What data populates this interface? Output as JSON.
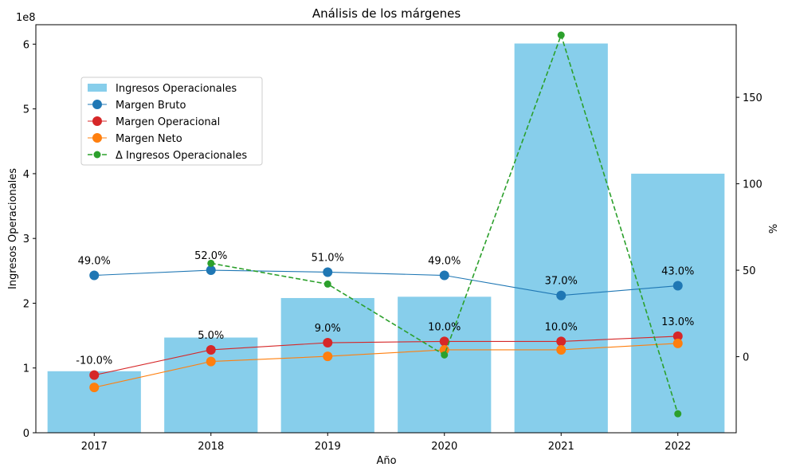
{
  "chart_data": {
    "type": "bar",
    "title": "Análisis de los márgenes",
    "xlabel": "Año",
    "ylabel": "Ingresos Operacionales",
    "ylabel_right": "%",
    "y_offset_label": "1e8",
    "categories": [
      "2017",
      "2018",
      "2019",
      "2020",
      "2021",
      "2022"
    ],
    "ylim": [
      0,
      6.3
    ],
    "ylim_right": [
      -44,
      192
    ],
    "yticks": [
      0,
      1,
      2,
      3,
      4,
      5,
      6
    ],
    "yticks_right": [
      0,
      50,
      100,
      150
    ],
    "bars": {
      "name": "Ingresos Operacionales",
      "color": "#87ceeb",
      "values": [
        0.95,
        1.47,
        2.08,
        2.1,
        6.01,
        4.0
      ]
    },
    "series": [
      {
        "name": "Margen Bruto",
        "axis": "left",
        "color": "#1f77b4",
        "values": [
          2.43,
          2.51,
          2.48,
          2.43,
          2.12,
          2.27
        ],
        "labels": [
          "49.0%",
          "52.0%",
          "51.0%",
          "49.0%",
          "37.0%",
          "43.0%"
        ]
      },
      {
        "name": "Margen Operacional",
        "axis": "left",
        "color": "#d62728",
        "values": [
          0.89,
          1.28,
          1.39,
          1.41,
          1.41,
          1.49
        ],
        "labels": [
          "-10.0%",
          "5.0%",
          "9.0%",
          "10.0%",
          "10.0%",
          "13.0%"
        ]
      },
      {
        "name": "Margen Neto",
        "axis": "left",
        "color": "#ff7f0e",
        "values": [
          0.7,
          1.1,
          1.18,
          1.28,
          1.28,
          1.38
        ]
      },
      {
        "name": "Δ Ingresos Operacionales",
        "axis": "right",
        "color": "#2ca02c",
        "dashed": true,
        "values": [
          null,
          54,
          42,
          1,
          186,
          -33
        ]
      }
    ],
    "legend_position": "upper-left",
    "grid": false
  }
}
